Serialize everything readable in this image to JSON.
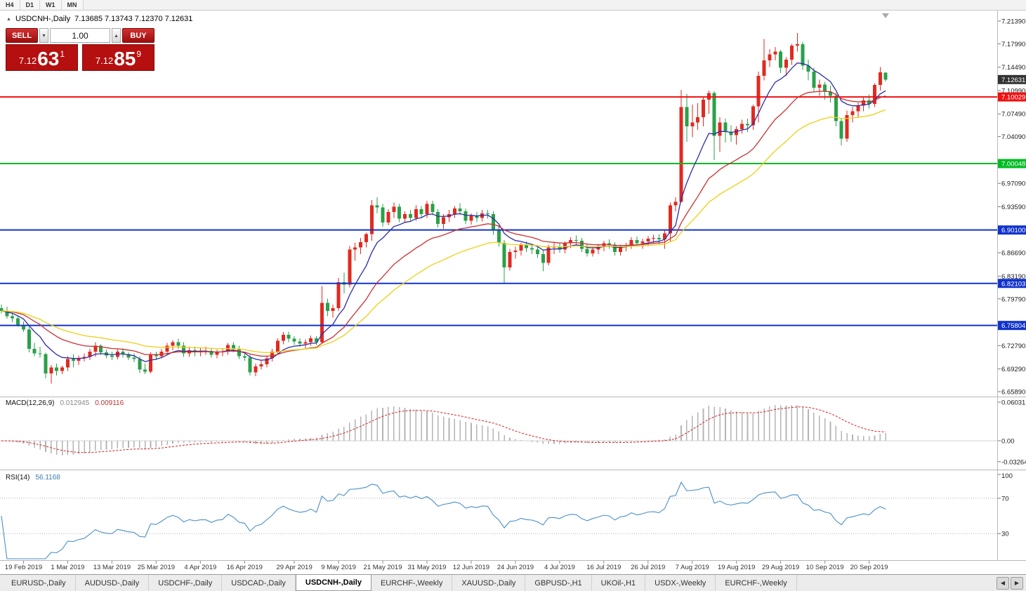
{
  "toolbar": {
    "timeframes": [
      "H4",
      "D1",
      "W1",
      "MN"
    ]
  },
  "chart_title": {
    "collapse_icon": "▲",
    "symbol": "USDCNH-,Daily",
    "ohlc": "7.13685 7.13743 7.12370 7.12631"
  },
  "trade_panel": {
    "sell_label": "SELL",
    "buy_label": "BUY",
    "volume": "1.00",
    "spin_down_icon": "▾",
    "spin_up_icon": "▴",
    "sell": {
      "prefix": "7.12",
      "big": "63",
      "sup": "1"
    },
    "buy": {
      "prefix": "7.12",
      "big": "85",
      "sup": "9"
    },
    "panel_color": "#b50f0f"
  },
  "chart_data": {
    "type": "candlestick",
    "symbol": "USDCNH",
    "timeframe": "Daily",
    "colors": {
      "up": "#e02a20",
      "down": "#2aa04a",
      "ma_fast": "#2c2ca8",
      "ma_mid": "#cc3030",
      "ma_slow": "#ecd014",
      "macd_hist": "#b4b4b4",
      "macd_signal": "#d02020",
      "rsi": "#4a8fc7"
    },
    "price_ticks": [
      "7.21390",
      "7.17990",
      "7.14490",
      "7.10990",
      "7.07490",
      "7.04090",
      "6.97090",
      "6.93590",
      "6.86690",
      "6.83190",
      "6.79790",
      "6.72790",
      "6.69290",
      "6.65890"
    ],
    "current_price": {
      "label": "7.12631",
      "value": 7.12631,
      "badge_color": "#333333"
    },
    "levels": [
      {
        "price": 7.10029,
        "label": "7.10029",
        "color": "#ee1111"
      },
      {
        "price": 7.00048,
        "label": "7.00048",
        "color": "#00bb22"
      },
      {
        "price": 6.901,
        "label": "6.90100",
        "color": "#1133cc"
      },
      {
        "price": 6.82103,
        "label": "6.82103",
        "color": "#1133cc"
      },
      {
        "price": 6.75804,
        "label": "6.75804",
        "color": "#1133cc"
      }
    ],
    "moving_averages": [
      {
        "period": 8,
        "color": "#2c2ca8"
      },
      {
        "period": 20,
        "color": "#cc3030"
      },
      {
        "period": 35,
        "color": "#ecd014"
      }
    ],
    "macd": {
      "label": "MACD(12,26,9)",
      "value_main": "0.012945",
      "value_signal": "0.009116",
      "fast": 12,
      "slow": 26,
      "signal": 9,
      "scale_labels": [
        "0.06031",
        "0.00",
        "-0.03264"
      ]
    },
    "rsi": {
      "label": "RSI(14)",
      "value": "56.1168",
      "period": 14,
      "scale_labels": [
        "100",
        "70",
        "30"
      ],
      "level_lines": [
        70,
        30
      ]
    },
    "date_labels": [
      {
        "text": "19 Feb 2019",
        "i": 4
      },
      {
        "text": "1 Mar 2019",
        "i": 12
      },
      {
        "text": "13 Mar 2019",
        "i": 20
      },
      {
        "text": "25 Mar 2019",
        "i": 28
      },
      {
        "text": "4 Apr 2019",
        "i": 36
      },
      {
        "text": "16 Apr 2019",
        "i": 44
      },
      {
        "text": "29 Apr 2019",
        "i": 53
      },
      {
        "text": "9 May 2019",
        "i": 61
      },
      {
        "text": "21 May 2019",
        "i": 69
      },
      {
        "text": "31 May 2019",
        "i": 77
      },
      {
        "text": "12 Jun 2019",
        "i": 85
      },
      {
        "text": "24 Jun 2019",
        "i": 93
      },
      {
        "text": "4 Jul 2019",
        "i": 101
      },
      {
        "text": "16 Jul 2019",
        "i": 109
      },
      {
        "text": "26 Jul 2019",
        "i": 117
      },
      {
        "text": "7 Aug 2019",
        "i": 125
      },
      {
        "text": "19 Aug 2019",
        "i": 133
      },
      {
        "text": "29 Aug 2019",
        "i": 141
      },
      {
        "text": "10 Sep 2019",
        "i": 149
      },
      {
        "text": "20 Sep 2019",
        "i": 157
      }
    ],
    "candles": [
      [
        6.784,
        6.789,
        6.776,
        6.78
      ],
      [
        6.78,
        6.786,
        6.768,
        6.772
      ],
      [
        6.772,
        6.779,
        6.763,
        6.769
      ],
      [
        6.769,
        6.772,
        6.756,
        6.759
      ],
      [
        6.759,
        6.764,
        6.748,
        6.752
      ],
      [
        6.752,
        6.756,
        6.718,
        6.723
      ],
      [
        6.723,
        6.732,
        6.712,
        6.716
      ],
      [
        6.716,
        6.726,
        6.71,
        6.715
      ],
      [
        6.715,
        6.717,
        6.679,
        6.686
      ],
      [
        6.686,
        6.699,
        6.671,
        6.695
      ],
      [
        6.695,
        6.701,
        6.683,
        6.69
      ],
      [
        6.69,
        6.698,
        6.685,
        6.695
      ],
      [
        6.695,
        6.712,
        6.69,
        6.708
      ],
      [
        6.708,
        6.715,
        6.695,
        6.705
      ],
      [
        6.705,
        6.713,
        6.699,
        6.709
      ],
      [
        6.709,
        6.716,
        6.704,
        6.711
      ],
      [
        6.711,
        6.723,
        6.706,
        6.719
      ],
      [
        6.719,
        6.733,
        6.711,
        6.728
      ],
      [
        6.728,
        6.73,
        6.714,
        6.718
      ],
      [
        6.718,
        6.722,
        6.709,
        6.713
      ],
      [
        6.713,
        6.719,
        6.706,
        6.711
      ],
      [
        6.711,
        6.723,
        6.707,
        6.719
      ],
      [
        6.719,
        6.724,
        6.71,
        6.715
      ],
      [
        6.715,
        6.718,
        6.706,
        6.71
      ],
      [
        6.71,
        6.716,
        6.703,
        6.708
      ],
      [
        6.708,
        6.712,
        6.687,
        6.692
      ],
      [
        6.692,
        6.701,
        6.685,
        6.689
      ],
      [
        6.689,
        6.718,
        6.686,
        6.714
      ],
      [
        6.714,
        6.719,
        6.706,
        6.712
      ],
      [
        6.712,
        6.723,
        6.709,
        6.719
      ],
      [
        6.719,
        6.732,
        6.714,
        6.728
      ],
      [
        6.728,
        6.736,
        6.721,
        6.733
      ],
      [
        6.733,
        6.738,
        6.723,
        6.728
      ],
      [
        6.728,
        6.733,
        6.711,
        6.716
      ],
      [
        6.716,
        6.726,
        6.711,
        6.721
      ],
      [
        6.721,
        6.726,
        6.712,
        6.718
      ],
      [
        6.718,
        6.725,
        6.712,
        6.72
      ],
      [
        6.72,
        6.726,
        6.714,
        6.72
      ],
      [
        6.72,
        6.724,
        6.71,
        6.714
      ],
      [
        6.714,
        6.722,
        6.709,
        6.718
      ],
      [
        6.718,
        6.724,
        6.712,
        6.719
      ],
      [
        6.719,
        6.732,
        6.714,
        6.729
      ],
      [
        6.729,
        6.733,
        6.718,
        6.723
      ],
      [
        6.723,
        6.728,
        6.708,
        6.712
      ],
      [
        6.712,
        6.718,
        6.705,
        6.71
      ],
      [
        6.71,
        6.714,
        6.683,
        6.688
      ],
      [
        6.688,
        6.701,
        6.682,
        6.697
      ],
      [
        6.697,
        6.705,
        6.692,
        6.7
      ],
      [
        6.7,
        6.713,
        6.695,
        6.709
      ],
      [
        6.709,
        6.723,
        6.704,
        6.719
      ],
      [
        6.719,
        6.739,
        6.715,
        6.735
      ],
      [
        6.735,
        6.748,
        6.73,
        6.744
      ],
      [
        6.744,
        6.749,
        6.733,
        6.738
      ],
      [
        6.738,
        6.742,
        6.729,
        6.734
      ],
      [
        6.734,
        6.739,
        6.726,
        6.731
      ],
      [
        6.731,
        6.737,
        6.724,
        6.733
      ],
      [
        6.733,
        6.743,
        6.728,
        6.739
      ],
      [
        6.739,
        6.742,
        6.729,
        6.733
      ],
      [
        6.733,
        6.817,
        6.732,
        6.792
      ],
      [
        6.792,
        6.798,
        6.772,
        6.78
      ],
      [
        6.78,
        6.789,
        6.77,
        6.784
      ],
      [
        6.784,
        6.829,
        6.78,
        6.823
      ],
      [
        6.823,
        6.837,
        6.806,
        6.819
      ],
      [
        6.819,
        6.877,
        6.815,
        6.872
      ],
      [
        6.872,
        6.882,
        6.855,
        6.875
      ],
      [
        6.875,
        6.889,
        6.865,
        6.883
      ],
      [
        6.883,
        6.897,
        6.875,
        6.895
      ],
      [
        6.895,
        6.946,
        6.885,
        6.938
      ],
      [
        6.938,
        6.95,
        6.926,
        6.935
      ],
      [
        6.935,
        6.94,
        6.906,
        6.912
      ],
      [
        6.912,
        6.932,
        6.908,
        6.928
      ],
      [
        6.928,
        6.942,
        6.919,
        6.936
      ],
      [
        6.936,
        6.94,
        6.913,
        6.918
      ],
      [
        6.918,
        6.929,
        6.912,
        6.925
      ],
      [
        6.925,
        6.931,
        6.914,
        6.919
      ],
      [
        6.919,
        6.938,
        6.915,
        6.932
      ],
      [
        6.932,
        6.937,
        6.92,
        6.925
      ],
      [
        6.925,
        6.945,
        6.919,
        6.94
      ],
      [
        6.94,
        6.945,
        6.923,
        6.928
      ],
      [
        6.928,
        6.932,
        6.905,
        6.91
      ],
      [
        6.91,
        6.925,
        6.903,
        6.92
      ],
      [
        6.92,
        6.931,
        6.913,
        6.925
      ],
      [
        6.925,
        6.937,
        6.919,
        6.933
      ],
      [
        6.933,
        6.941,
        6.923,
        6.929
      ],
      [
        6.929,
        6.933,
        6.91,
        6.915
      ],
      [
        6.915,
        6.926,
        6.909,
        6.922
      ],
      [
        6.922,
        6.928,
        6.913,
        6.919
      ],
      [
        6.919,
        6.931,
        6.914,
        6.926
      ],
      [
        6.926,
        6.931,
        6.918,
        6.925
      ],
      [
        6.925,
        6.929,
        6.894,
        6.9
      ],
      [
        6.9,
        6.908,
        6.876,
        6.882
      ],
      [
        6.882,
        6.886,
        6.822,
        6.845
      ],
      [
        6.845,
        6.873,
        6.84,
        6.868
      ],
      [
        6.868,
        6.876,
        6.858,
        6.87
      ],
      [
        6.87,
        6.882,
        6.863,
        6.879
      ],
      [
        6.879,
        6.884,
        6.868,
        6.874
      ],
      [
        6.874,
        6.88,
        6.865,
        6.872
      ],
      [
        6.872,
        6.877,
        6.859,
        6.865
      ],
      [
        6.865,
        6.87,
        6.839,
        6.852
      ],
      [
        6.852,
        6.879,
        6.848,
        6.875
      ],
      [
        6.875,
        6.882,
        6.865,
        6.876
      ],
      [
        6.876,
        6.881,
        6.867,
        6.872
      ],
      [
        6.872,
        6.884,
        6.866,
        6.881
      ],
      [
        6.881,
        6.89,
        6.874,
        6.886
      ],
      [
        6.886,
        6.893,
        6.878,
        6.885
      ],
      [
        6.885,
        6.889,
        6.868,
        6.873
      ],
      [
        6.873,
        6.879,
        6.861,
        6.866
      ],
      [
        6.866,
        6.876,
        6.861,
        6.872
      ],
      [
        6.872,
        6.88,
        6.865,
        6.876
      ],
      [
        6.876,
        6.885,
        6.869,
        6.881
      ],
      [
        6.881,
        6.887,
        6.873,
        6.879
      ],
      [
        6.879,
        6.883,
        6.863,
        6.868
      ],
      [
        6.868,
        6.879,
        6.863,
        6.876
      ],
      [
        6.876,
        6.882,
        6.869,
        6.878
      ],
      [
        6.878,
        6.89,
        6.873,
        6.886
      ],
      [
        6.886,
        6.891,
        6.876,
        6.881
      ],
      [
        6.881,
        6.888,
        6.873,
        6.884
      ],
      [
        6.884,
        6.892,
        6.877,
        6.888
      ],
      [
        6.888,
        6.894,
        6.88,
        6.889
      ],
      [
        6.889,
        6.895,
        6.88,
        6.887
      ],
      [
        6.887,
        6.9,
        6.873,
        6.896
      ],
      [
        6.896,
        6.942,
        6.883,
        6.938
      ],
      [
        6.938,
        6.95,
        6.929,
        6.943
      ],
      [
        6.943,
        7.111,
        6.942,
        7.085
      ],
      [
        7.085,
        7.105,
        7.033,
        7.056
      ],
      [
        7.056,
        7.089,
        7.04,
        7.062
      ],
      [
        7.062,
        7.091,
        7.051,
        7.07
      ],
      [
        7.07,
        7.101,
        7.056,
        7.096
      ],
      [
        7.096,
        7.11,
        7.075,
        7.106
      ],
      [
        7.106,
        7.109,
        7.006,
        7.042
      ],
      [
        7.042,
        7.07,
        7.018,
        7.062
      ],
      [
        7.062,
        7.068,
        7.032,
        7.048
      ],
      [
        7.048,
        7.058,
        7.033,
        7.043
      ],
      [
        7.043,
        7.056,
        7.029,
        7.052
      ],
      [
        7.052,
        7.066,
        7.045,
        7.06
      ],
      [
        7.06,
        7.068,
        7.048,
        7.058
      ],
      [
        7.058,
        7.089,
        7.051,
        7.086
      ],
      [
        7.086,
        7.138,
        7.062,
        7.132
      ],
      [
        7.132,
        7.187,
        7.125,
        7.155
      ],
      [
        7.155,
        7.172,
        7.145,
        7.164
      ],
      [
        7.164,
        7.175,
        7.155,
        7.168
      ],
      [
        7.168,
        7.171,
        7.136,
        7.144
      ],
      [
        7.144,
        7.16,
        7.132,
        7.156
      ],
      [
        7.156,
        7.18,
        7.148,
        7.177
      ],
      [
        7.177,
        7.196,
        7.168,
        7.179
      ],
      [
        7.179,
        7.183,
        7.141,
        7.147
      ],
      [
        7.147,
        7.156,
        7.125,
        7.138
      ],
      [
        7.138,
        7.144,
        7.108,
        7.114
      ],
      [
        7.114,
        7.126,
        7.102,
        7.119
      ],
      [
        7.119,
        7.123,
        7.096,
        7.108
      ],
      [
        7.108,
        7.117,
        7.092,
        7.102
      ],
      [
        7.102,
        7.106,
        7.056,
        7.064
      ],
      [
        7.064,
        7.069,
        7.028,
        7.038
      ],
      [
        7.038,
        7.08,
        7.033,
        7.073
      ],
      [
        7.073,
        7.085,
        7.062,
        7.079
      ],
      [
        7.079,
        7.092,
        7.07,
        7.087
      ],
      [
        7.087,
        7.1,
        7.079,
        7.095
      ],
      [
        7.095,
        7.104,
        7.083,
        7.09
      ],
      [
        7.09,
        7.121,
        7.085,
        7.118
      ],
      [
        7.118,
        7.145,
        7.11,
        7.137
      ],
      [
        7.1369,
        7.1374,
        7.1237,
        7.1263
      ]
    ]
  },
  "tabs": {
    "items": [
      "EURUSD-,Daily",
      "AUDUSD-,Daily",
      "USDCHF-,Daily",
      "USDCAD-,Daily",
      "USDCNH-,Daily",
      "EURCHF-,Weekly",
      "XAUUSD-,Daily",
      "GBPUSD-,H1",
      "UKOil-,H1",
      "USDX-,Weekly",
      "EURCHF-,Weekly"
    ],
    "active_index": 4,
    "scroll_left_icon": "◀",
    "scroll_right_icon": "▶"
  }
}
